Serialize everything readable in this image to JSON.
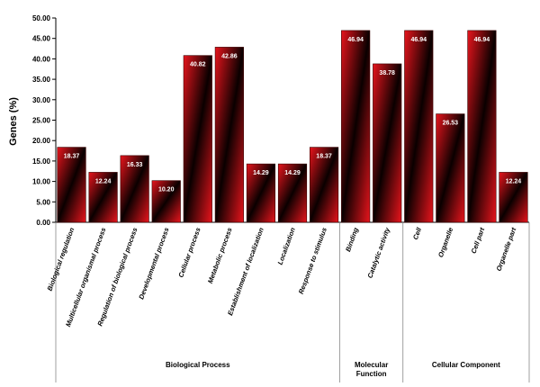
{
  "chart_data": {
    "type": "bar",
    "ylabel": "Genes (%)",
    "ylim": [
      0,
      50
    ],
    "ytick_step": 5,
    "yticks": [
      "0.00",
      "5.00",
      "10.00",
      "15.00",
      "20.00",
      "25.00",
      "30.00",
      "35.00",
      "40.00",
      "45.00",
      "50.00"
    ],
    "grid": false,
    "categories": [
      "Biological regulation",
      "Multicellular organismal process",
      "Regulation of biological process",
      "Developmental process",
      "Cellular process",
      "Metabolic process",
      "Establishment of localization",
      "Localization",
      "Response to stimulus",
      "Binding",
      "Catalytic activity",
      "Cell",
      "Organelle",
      "Cell part",
      "Organelle part"
    ],
    "values": [
      18.37,
      12.24,
      16.33,
      10.2,
      40.82,
      42.86,
      14.29,
      14.29,
      18.37,
      46.94,
      38.78,
      46.94,
      26.53,
      46.94,
      12.24
    ],
    "value_labels": [
      "18.37",
      "12.24",
      "16.33",
      "10.20",
      "40.82",
      "42.86",
      "14.29",
      "14.29",
      "18.37",
      "46.94",
      "38.78",
      "46.94",
      "26.53",
      "46.94",
      "12.24"
    ],
    "groups": [
      {
        "label_lines": [
          "Biological Process"
        ],
        "start": 0,
        "end": 8
      },
      {
        "label_lines": [
          "Molecular",
          "Function"
        ],
        "start": 9,
        "end": 10
      },
      {
        "label_lines": [
          "Cellular Component"
        ],
        "start": 11,
        "end": 14
      }
    ],
    "bar_colors": {
      "edge": "#e8141c",
      "center": "#0a0000"
    }
  }
}
